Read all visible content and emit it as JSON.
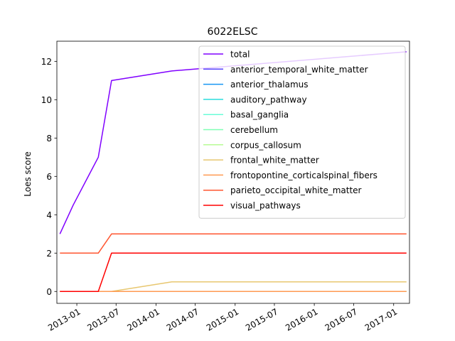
{
  "chart_data": {
    "type": "line",
    "title": "6022ELSC",
    "xlabel": "",
    "ylabel": "Loes score",
    "x_type": "date",
    "x_ticks": [
      "2013-01",
      "2013-07",
      "2014-01",
      "2014-07",
      "2015-01",
      "2015-07",
      "2016-01",
      "2016-07",
      "2017-01"
    ],
    "xlim": [
      "2012-10-01",
      "2017-03-15"
    ],
    "y_ticks": [
      0,
      2,
      4,
      6,
      8,
      10,
      12
    ],
    "ylim": [
      -0.62,
      13.05
    ],
    "grid": false,
    "legend_position": "top-right",
    "x": [
      "2012-10-15",
      "2012-12-15",
      "2013-04-10",
      "2013-06-10",
      "2014-03-15",
      "2017-03-01"
    ],
    "series": [
      {
        "name": "total",
        "color": "#8000ff",
        "values": [
          3,
          4.5,
          7,
          11,
          11.5,
          12.5
        ]
      },
      {
        "name": "anterior_temporal_white_matter",
        "color": "#5641fd",
        "values": [
          0,
          0,
          0,
          0,
          0,
          0
        ]
      },
      {
        "name": "anterior_thalamus",
        "color": "#1996f3",
        "values": [
          0,
          0,
          0,
          0,
          0,
          0
        ]
      },
      {
        "name": "auditory_pathway",
        "color": "#2adddd",
        "values": [
          0,
          0,
          0,
          0,
          0,
          0
        ]
      },
      {
        "name": "basal_ganglia",
        "color": "#6afcd8",
        "values": [
          0,
          0,
          0,
          0,
          0,
          0
        ]
      },
      {
        "name": "cerebellum",
        "color": "#80ffb4",
        "values": [
          0,
          0,
          0,
          0,
          0,
          0
        ]
      },
      {
        "name": "corpus_callosum",
        "color": "#b7fb94",
        "values": [
          0,
          0,
          0,
          0,
          0,
          0
        ]
      },
      {
        "name": "frontal_white_matter",
        "color": "#e8c770",
        "values": [
          0,
          0,
          0,
          0,
          0.5,
          0.5
        ]
      },
      {
        "name": "frontopontine_corticalspinal_fibers",
        "color": "#ff9a52",
        "values": [
          0,
          0,
          0,
          0,
          0,
          0
        ]
      },
      {
        "name": "parieto_occipital_white_matter",
        "color": "#ff5630",
        "values": [
          2,
          2,
          2,
          3,
          3,
          3
        ]
      },
      {
        "name": "visual_pathways",
        "color": "#ff0000",
        "values": [
          0,
          0,
          0,
          2,
          2,
          2
        ]
      }
    ]
  }
}
